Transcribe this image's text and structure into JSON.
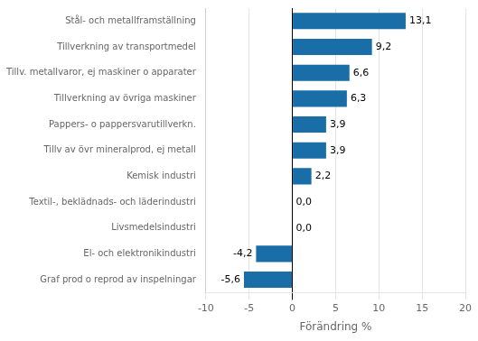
{
  "chart_data": {
    "type": "bar",
    "orientation": "horizontal",
    "categories": [
      "Graf prod o reprod av inspelningar",
      "El- och elektronikindustri",
      "Livsmedelsindustri",
      "Textil-, beklädnads- och läderindustri",
      "Kemisk industri",
      "Tillv av övr mineralprod, ej metall",
      "Pappers- o pappersvarutillverkn.",
      "Tillverkning av övriga maskiner",
      "Tillv. metallvaror, ej maskiner o apparater",
      "Tillverkning av transportmedel",
      "Stål- och metallframställning"
    ],
    "values": [
      -5.6,
      -4.2,
      0.0,
      0.0,
      2.2,
      3.9,
      3.9,
      6.3,
      6.6,
      9.2,
      13.1
    ],
    "value_labels": [
      "-5,6",
      "-4,2",
      "0,0",
      "0,0",
      "2,2",
      "3,9",
      "3,9",
      "6,3",
      "6,6",
      "9,2",
      "13,1"
    ],
    "data_labels": true,
    "color": "#1a6ea8",
    "xlabel": "Förändring %",
    "xlim": [
      -10,
      20
    ],
    "xticks": [
      -10,
      -5,
      0,
      5,
      10,
      15,
      20
    ],
    "grid": true
  }
}
